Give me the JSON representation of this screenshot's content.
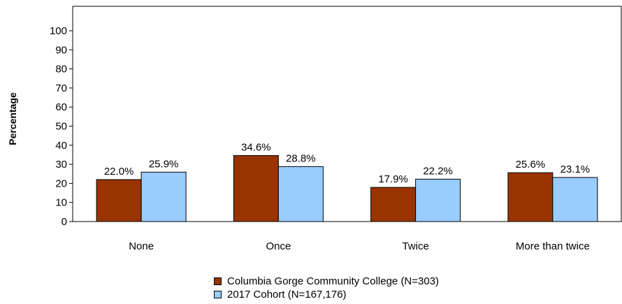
{
  "chart_data": {
    "type": "bar",
    "ylabel": "Percentage",
    "xlabel": "",
    "categories": [
      "None",
      "Once",
      "Twice",
      "More than twice"
    ],
    "series": [
      {
        "name": "Columbia Gorge Community College (N=303)",
        "values": [
          22.0,
          34.6,
          17.9,
          25.6
        ],
        "labels": [
          "22.0%",
          "34.6%",
          "17.9%",
          "25.6%"
        ],
        "color": "#993300"
      },
      {
        "name": "2017 Cohort (N=167,176)",
        "values": [
          25.9,
          28.8,
          22.2,
          23.1
        ],
        "labels": [
          "25.9%",
          "28.8%",
          "22.2%",
          "23.1%"
        ],
        "color": "#99ccff"
      }
    ],
    "ylim": [
      0,
      100
    ],
    "yticks": [
      0,
      10,
      20,
      30,
      40,
      50,
      60,
      70,
      80,
      90,
      100
    ],
    "grid": false,
    "legend_position": "bottom"
  }
}
